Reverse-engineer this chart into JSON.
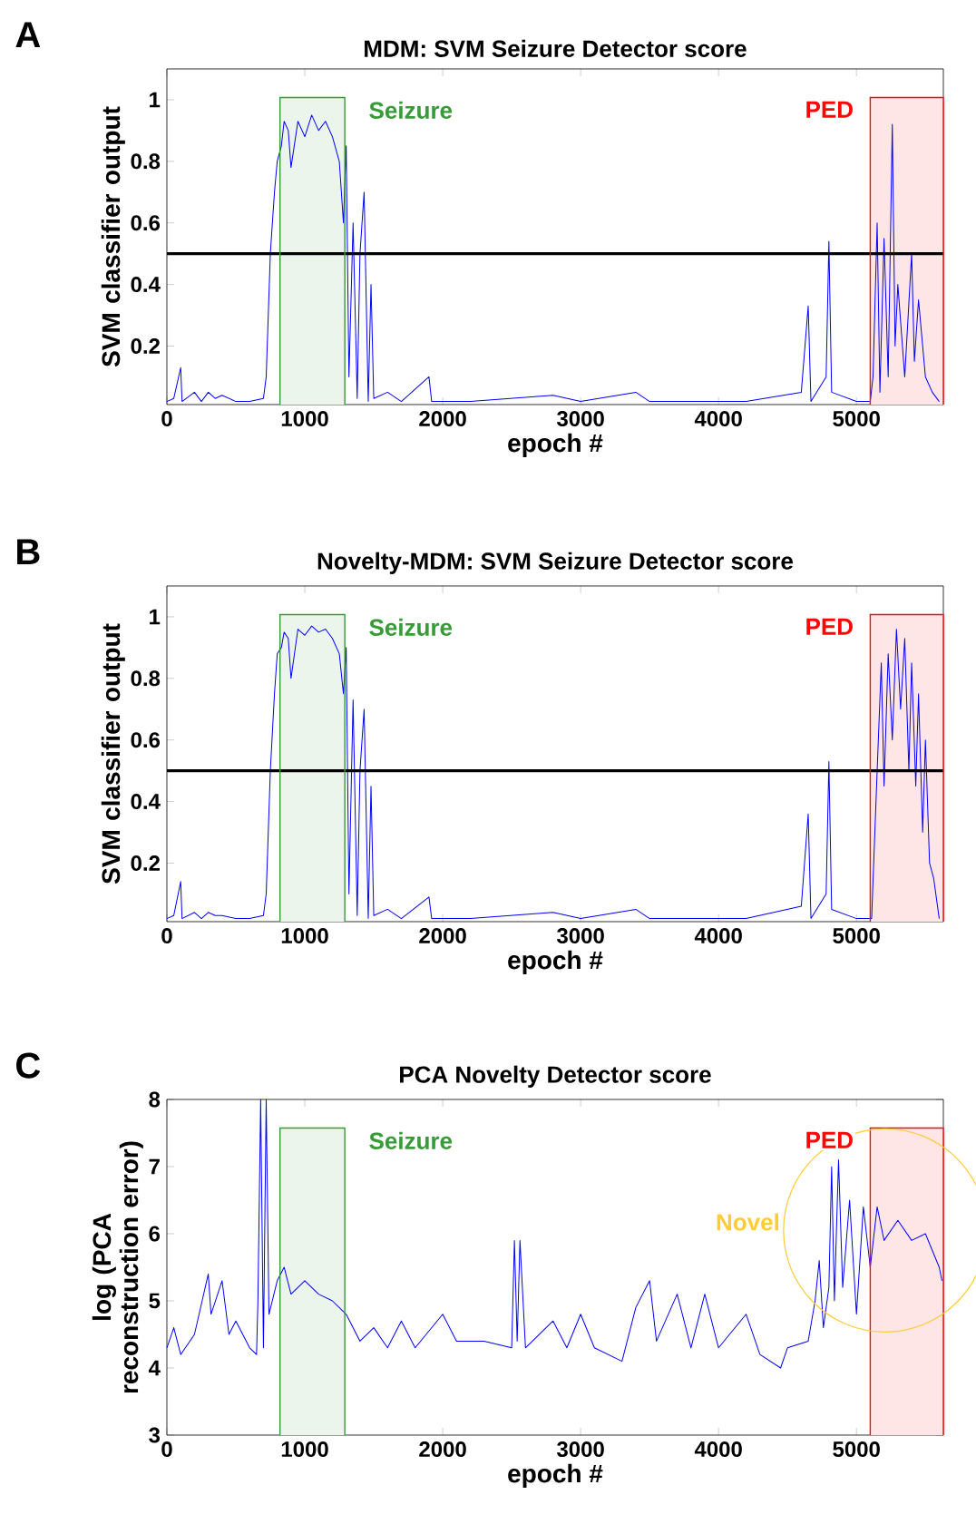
{
  "chart_data": [
    {
      "type": "line",
      "title": "MDM: SVM Seizure Detector score",
      "xlabel": "epoch #",
      "ylabel": "SVM classifier output",
      "xlim": [
        0,
        5630
      ],
      "ylim": [
        0.01,
        1.1
      ],
      "xticks": [
        0,
        1000,
        2000,
        3000,
        4000,
        5000
      ],
      "yticks": [
        0.2,
        0.4,
        0.6,
        0.8,
        1
      ],
      "annotations": [
        "A"
      ],
      "series": [
        {
          "color": "#0000ff",
          "x": [
            0,
            50,
            100,
            110,
            200,
            250,
            300,
            350,
            400,
            500,
            600,
            700,
            720,
            750,
            780,
            800,
            830,
            850,
            880,
            900,
            950,
            1000,
            1050,
            1100,
            1150,
            1200,
            1250,
            1280,
            1300,
            1320,
            1350,
            1380,
            1400,
            1430,
            1460,
            1480,
            1500,
            1600,
            1700,
            1900,
            1920,
            2200,
            2800,
            3000,
            3400,
            3500,
            4200,
            4600,
            4650,
            4670,
            4780,
            4800,
            4820,
            5000,
            5100,
            5120,
            5150,
            5170,
            5200,
            5230,
            5260,
            5280,
            5300,
            5350,
            5400,
            5420,
            5450,
            5500,
            5550,
            5600
          ],
          "values": [
            0.02,
            0.03,
            0.13,
            0.02,
            0.05,
            0.02,
            0.05,
            0.03,
            0.04,
            0.02,
            0.02,
            0.03,
            0.1,
            0.5,
            0.7,
            0.8,
            0.85,
            0.93,
            0.9,
            0.78,
            0.93,
            0.88,
            0.95,
            0.9,
            0.93,
            0.88,
            0.8,
            0.6,
            0.85,
            0.1,
            0.6,
            0.03,
            0.5,
            0.7,
            0.02,
            0.4,
            0.03,
            0.05,
            0.02,
            0.1,
            0.02,
            0.02,
            0.04,
            0.02,
            0.05,
            0.02,
            0.02,
            0.05,
            0.33,
            0.02,
            0.1,
            0.54,
            0.05,
            0.02,
            0.02,
            0.1,
            0.6,
            0.05,
            0.55,
            0.1,
            0.92,
            0.2,
            0.4,
            0.1,
            0.5,
            0.15,
            0.35,
            0.1,
            0.05,
            0.02
          ]
        }
      ],
      "ref_lines": [
        {
          "axis": "y",
          "value": 0.5,
          "color": "#000000"
        }
      ],
      "bands": [
        {
          "axis": "x",
          "from": 820,
          "to": 1290,
          "label": "Seizure",
          "color": "#ebf5eb"
        },
        {
          "axis": "x",
          "from": 5100,
          "to": 5630,
          "label": "PED",
          "color": "#ffe6e6"
        }
      ]
    },
    {
      "type": "line",
      "title": "Novelty-MDM: SVM Seizure Detector score",
      "xlabel": "epoch #",
      "ylabel": "SVM classifier output",
      "xlim": [
        0,
        5630
      ],
      "ylim": [
        0.01,
        1.1
      ],
      "xticks": [
        0,
        1000,
        2000,
        3000,
        4000,
        5000
      ],
      "yticks": [
        0.2,
        0.4,
        0.6,
        0.8,
        1
      ],
      "annotations": [
        "B"
      ],
      "series": [
        {
          "color": "#0000ff",
          "x": [
            0,
            50,
            100,
            110,
            200,
            250,
            300,
            350,
            400,
            500,
            600,
            700,
            720,
            750,
            780,
            800,
            830,
            850,
            880,
            900,
            950,
            1000,
            1050,
            1100,
            1150,
            1200,
            1250,
            1280,
            1300,
            1320,
            1350,
            1380,
            1400,
            1430,
            1460,
            1480,
            1500,
            1600,
            1700,
            1900,
            1920,
            2200,
            2800,
            3000,
            3400,
            3500,
            4200,
            4600,
            4650,
            4670,
            4780,
            4800,
            4820,
            5000,
            5110,
            5150,
            5180,
            5200,
            5230,
            5260,
            5290,
            5320,
            5350,
            5380,
            5400,
            5430,
            5450,
            5480,
            5500,
            5530,
            5560,
            5600
          ],
          "values": [
            0.02,
            0.03,
            0.14,
            0.02,
            0.04,
            0.02,
            0.04,
            0.03,
            0.03,
            0.02,
            0.02,
            0.03,
            0.1,
            0.5,
            0.75,
            0.88,
            0.9,
            0.95,
            0.93,
            0.8,
            0.96,
            0.94,
            0.97,
            0.95,
            0.96,
            0.93,
            0.88,
            0.75,
            0.9,
            0.1,
            0.73,
            0.03,
            0.5,
            0.7,
            0.02,
            0.45,
            0.03,
            0.05,
            0.02,
            0.09,
            0.02,
            0.02,
            0.04,
            0.02,
            0.05,
            0.02,
            0.02,
            0.06,
            0.36,
            0.02,
            0.1,
            0.53,
            0.05,
            0.02,
            0.02,
            0.5,
            0.85,
            0.45,
            0.88,
            0.6,
            0.96,
            0.7,
            0.93,
            0.5,
            0.85,
            0.45,
            0.75,
            0.3,
            0.6,
            0.2,
            0.15,
            0.02
          ]
        }
      ],
      "ref_lines": [
        {
          "axis": "y",
          "value": 0.5,
          "color": "#000000"
        }
      ],
      "bands": [
        {
          "axis": "x",
          "from": 820,
          "to": 1290,
          "label": "Seizure",
          "color": "#ebf5eb"
        },
        {
          "axis": "x",
          "from": 5100,
          "to": 5630,
          "label": "PED",
          "color": "#ffe6e6"
        }
      ]
    },
    {
      "type": "line",
      "title": "PCA Novelty Detector score",
      "xlabel": "epoch #",
      "ylabel": "log (PCA reconstruction error)",
      "xlim": [
        0,
        5630
      ],
      "ylim": [
        3,
        8
      ],
      "xticks": [
        0,
        1000,
        2000,
        3000,
        4000,
        5000
      ],
      "yticks": [
        3,
        4,
        5,
        6,
        7,
        8
      ],
      "annotations": [
        "C",
        "Novel"
      ],
      "series": [
        {
          "color": "#0000ff",
          "x": [
            0,
            50,
            100,
            200,
            300,
            320,
            400,
            450,
            500,
            600,
            650,
            660,
            680,
            700,
            720,
            740,
            800,
            850,
            900,
            1000,
            1100,
            1200,
            1300,
            1400,
            1500,
            1600,
            1700,
            1800,
            2000,
            2100,
            2300,
            2500,
            2520,
            2540,
            2560,
            2600,
            2800,
            2900,
            3000,
            3100,
            3300,
            3400,
            3500,
            3550,
            3700,
            3800,
            3900,
            4000,
            4200,
            4300,
            4450,
            4500,
            4650,
            4700,
            4730,
            4760,
            4800,
            4820,
            4840,
            4870,
            4900,
            4950,
            5000,
            5050,
            5100,
            5150,
            5200,
            5300,
            5400,
            5500,
            5600,
            5620
          ],
          "values": [
            4.3,
            4.6,
            4.2,
            4.5,
            5.4,
            4.8,
            5.3,
            4.5,
            4.7,
            4.3,
            4.2,
            5.0,
            8.0,
            4.3,
            8.0,
            4.8,
            5.3,
            5.5,
            5.1,
            5.3,
            5.1,
            5.0,
            4.8,
            4.4,
            4.6,
            4.3,
            4.7,
            4.3,
            4.8,
            4.4,
            4.4,
            4.3,
            5.9,
            4.4,
            5.9,
            4.3,
            4.7,
            4.3,
            4.8,
            4.3,
            4.1,
            4.9,
            5.3,
            4.4,
            5.1,
            4.3,
            5.1,
            4.3,
            4.8,
            4.2,
            4.0,
            4.3,
            4.4,
            5.0,
            5.6,
            4.6,
            5.2,
            7.0,
            5.0,
            7.1,
            5.2,
            6.5,
            4.8,
            6.4,
            5.5,
            6.4,
            5.9,
            6.2,
            5.9,
            6.0,
            5.5,
            5.3
          ]
        }
      ],
      "bands": [
        {
          "axis": "x",
          "from": 820,
          "to": 1290,
          "label": "Seizure",
          "color": "#ebf5eb"
        },
        {
          "axis": "x",
          "from": 5100,
          "to": 5630,
          "label": "PED",
          "color": "#ffe6e6"
        }
      ]
    }
  ]
}
